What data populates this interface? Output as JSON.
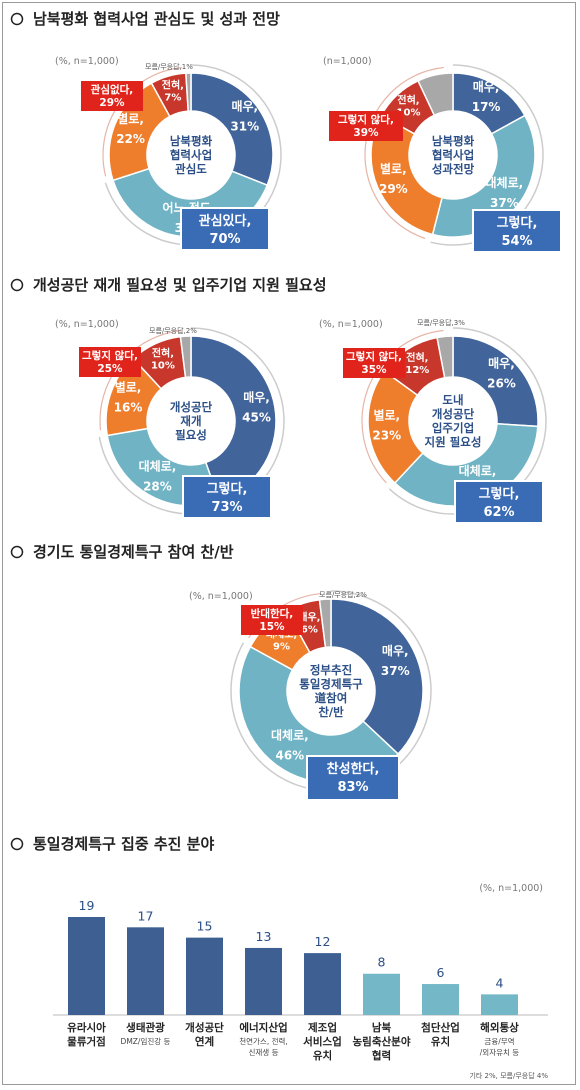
{
  "sections": [
    {
      "icon": "circle-bullet-icon",
      "title": "남북평화 협력사업 관심도 및 성과 전망"
    },
    {
      "icon": "circle-bullet-icon",
      "title": "개성공단 재개 필요성 및 입주기업 지원 필요성"
    },
    {
      "icon": "circle-bullet-icon",
      "title": "경기도 통일경제특구 참여 찬/반"
    },
    {
      "icon": "circle-bullet-icon",
      "title": "통일경제특구 집중 추진 분야"
    }
  ],
  "colors": {
    "blue": "#41649a",
    "teal": "#6fb3c4",
    "orange": "#ee7d2c",
    "red": "#c8372c",
    "gray": "#a8a8a8",
    "box_blue": "#3a6bb5",
    "box_red": "#e0241b",
    "bar": "#3d5f92",
    "bar_light": "#74b7c6"
  },
  "chart_data": [
    {
      "type": "pie",
      "note": "(%, n=1,000)",
      "center_lines": [
        "남북평화",
        "협력사업",
        "관심도"
      ],
      "slices": [
        {
          "label": "매우,",
          "value": 31,
          "color": "blue"
        },
        {
          "label": "어느 정도,",
          "value": 39,
          "color": "teal"
        },
        {
          "label": "별로,",
          "value": 22,
          "color": "orange"
        },
        {
          "label": "전혀,",
          "value": 7,
          "color": "red"
        },
        {
          "label": "모름/무응답,",
          "value": 1,
          "color": "gray"
        }
      ],
      "positive_box": {
        "label": "관심있다,",
        "value": "70%"
      },
      "negative_box": {
        "label": "관심없다,",
        "value": "29%"
      },
      "small_label": "모름/무응답,1%"
    },
    {
      "type": "pie",
      "note": "(n=1,000)",
      "center_lines": [
        "남북평화",
        "협력사업",
        "성과전망"
      ],
      "slices": [
        {
          "label": "매우,",
          "value": 17,
          "color": "blue"
        },
        {
          "label": "대체로,",
          "value": 37,
          "color": "teal"
        },
        {
          "label": "별로,",
          "value": 29,
          "color": "orange"
        },
        {
          "label": "전혀,",
          "value": 10,
          "color": "red"
        },
        {
          "label": "모름/무응답,",
          "value": 7,
          "color": "gray"
        }
      ],
      "positive_box": {
        "label": "그렇다,",
        "value": "54%"
      },
      "negative_box": {
        "label": "그렇지 않다,",
        "value": "39%"
      }
    },
    {
      "type": "pie",
      "note": "(%, n=1,000)",
      "center_lines": [
        "개성공단",
        "재개",
        "필요성"
      ],
      "slices": [
        {
          "label": "매우,",
          "value": 45,
          "color": "blue"
        },
        {
          "label": "대체로,",
          "value": 28,
          "color": "teal"
        },
        {
          "label": "별로,",
          "value": 16,
          "color": "orange"
        },
        {
          "label": "전혀,",
          "value": 10,
          "color": "red"
        },
        {
          "label": "모름/무응답,",
          "value": 2,
          "color": "gray"
        }
      ],
      "positive_box": {
        "label": "그렇다,",
        "value": "73%"
      },
      "negative_box": {
        "label": "그렇지 않다,",
        "value": "25%"
      },
      "small_label": "모름/무응답,2%"
    },
    {
      "type": "pie",
      "note": "(%, n=1,000)",
      "center_lines": [
        "도내",
        "개성공단",
        "입주기업",
        "지원 필요성"
      ],
      "slices": [
        {
          "label": "매우,",
          "value": 26,
          "color": "blue"
        },
        {
          "label": "대체로,",
          "value": 36,
          "color": "teal"
        },
        {
          "label": "별로,",
          "value": 23,
          "color": "orange"
        },
        {
          "label": "전혀,",
          "value": 12,
          "color": "red"
        },
        {
          "label": "모름/무응답,",
          "value": 3,
          "color": "gray"
        }
      ],
      "positive_box": {
        "label": "그렇다,",
        "value": "62%"
      },
      "negative_box": {
        "label": "그렇지 않다,",
        "value": "35%"
      },
      "small_label": "모름/무응답,3%"
    },
    {
      "type": "pie",
      "note": "(%, n=1,000)",
      "center_lines": [
        "정부추진",
        "통일경제특구",
        "道참여",
        "찬/반"
      ],
      "slices": [
        {
          "label": "매우,",
          "value": 37,
          "color": "blue"
        },
        {
          "label": "대체로,",
          "value": 46,
          "color": "teal"
        },
        {
          "label": "대체로,",
          "value": 9,
          "color": "orange"
        },
        {
          "label": "매우,",
          "value": 6,
          "color": "red"
        },
        {
          "label": "모름/무응답,",
          "value": 2,
          "color": "gray"
        }
      ],
      "positive_box": {
        "label": "찬성한다,",
        "value": "83%"
      },
      "negative_box": {
        "label": "반대한다,",
        "value": "15%"
      },
      "small_label": "모름/무응답,2%"
    },
    {
      "type": "bar",
      "note": "(%, n=1,000)",
      "categories": [
        {
          "lines": [
            "유라시아",
            "물류거점"
          ],
          "sub": []
        },
        {
          "lines": [
            "생태관광"
          ],
          "sub": [
            "DMZ/임진강 등"
          ]
        },
        {
          "lines": [
            "개성공단",
            "연계"
          ],
          "sub": []
        },
        {
          "lines": [
            "에너지산업"
          ],
          "sub": [
            "천연가스, 전력,",
            "신재생 등"
          ]
        },
        {
          "lines": [
            "제조업",
            "서비스업",
            "유치"
          ],
          "sub": []
        },
        {
          "lines": [
            "남북",
            "농림축산분야",
            "협력"
          ],
          "sub": []
        },
        {
          "lines": [
            "첨단산업",
            "유치"
          ],
          "sub": []
        },
        {
          "lines": [
            "해외통상"
          ],
          "sub": [
            "금융/무역",
            "/외자유치 등"
          ]
        }
      ],
      "values": [
        19,
        17,
        15,
        13,
        12,
        8,
        6,
        4
      ],
      "footnote": "기타 2%, 모름/무응답 4%"
    }
  ]
}
